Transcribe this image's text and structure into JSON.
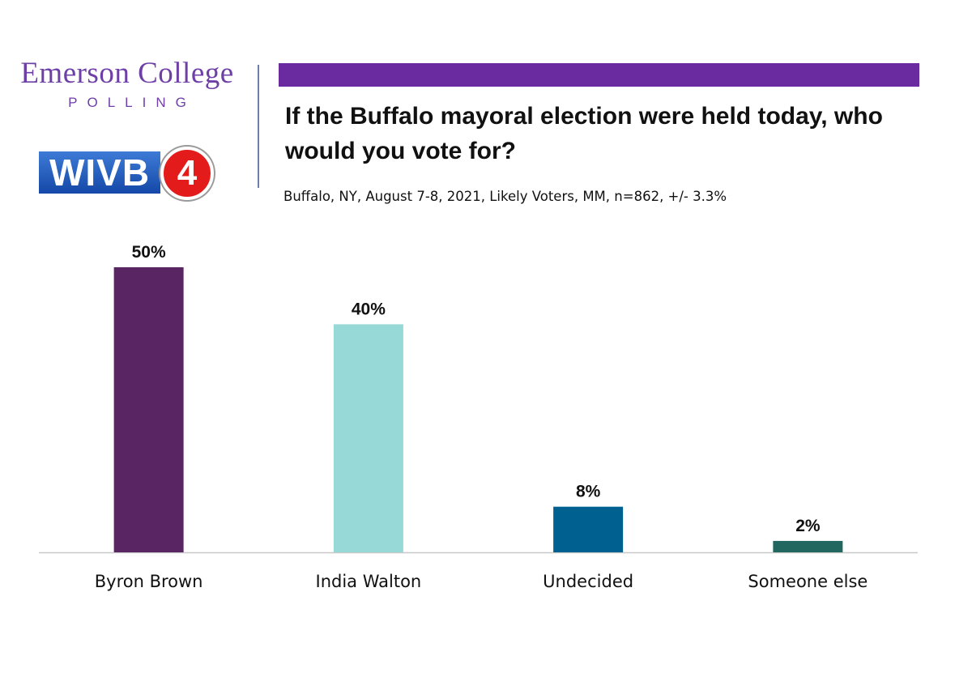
{
  "branding": {
    "org_name": "Emerson College",
    "org_sub": "POLLING",
    "partner_text": "WIVB",
    "partner_number": "4"
  },
  "colors": {
    "accent": "#6a2aa0",
    "axis": "#c8c8c8"
  },
  "chart_data": {
    "type": "bar",
    "title": "If the Buffalo mayoral election were held today, who would you vote for?",
    "subtitle": "Buffalo, NY, August 7-8, 2021, Likely Voters, MM, n=862, +/- 3.3%",
    "categories": [
      "Byron Brown",
      "India Walton",
      "Undecided",
      "Someone else"
    ],
    "values": [
      50,
      40,
      8,
      2
    ],
    "data_labels": [
      "50%",
      "40%",
      "8%",
      "2%"
    ],
    "colors": [
      "#5a2563",
      "#96d9d6",
      "#006090",
      "#22675f"
    ],
    "ylim": [
      0,
      50
    ],
    "grid": false,
    "legend": "none",
    "xlabel": "",
    "ylabel": ""
  }
}
